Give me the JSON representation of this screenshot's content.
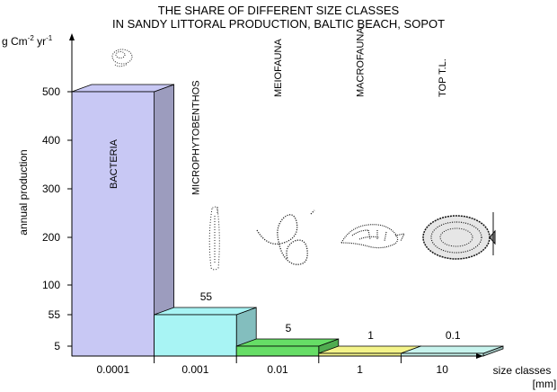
{
  "chart_data": {
    "type": "bar",
    "title": "THE SHARE OF DIFFERENT SIZE CLASSES",
    "subtitle": "IN SANDY LITTORAL PRODUCTION, BALTIC BEACH, SOPOT",
    "ylabel": "annual production",
    "yunit": {
      "base": "g Cm",
      "exp1": "-2",
      "mid": " yr",
      "exp2": "-1"
    },
    "xlabel": "size classes",
    "xunit": "[mm]",
    "yticks": [
      "5",
      "55",
      "100",
      "200",
      "300",
      "400",
      "500"
    ],
    "categories": [
      "0.0001",
      "0.001",
      "0.01",
      "1",
      "10"
    ],
    "groups": [
      "BACTERIA",
      "MICROPHYTOBENTHOS",
      "MEIOFAUNA",
      "MACROFAUNA",
      "TOP T.L."
    ],
    "values": [
      500,
      55,
      5,
      1,
      0.1
    ],
    "data_labels": [
      "",
      "55",
      "5",
      "1",
      "0.1"
    ],
    "ylim": [
      0,
      500
    ],
    "colors": [
      "#c8c8f4",
      "#a8f4f4",
      "#66dd66",
      "#f4f48a",
      "#c8f4ee"
    ],
    "grid": false,
    "legend": "none"
  }
}
